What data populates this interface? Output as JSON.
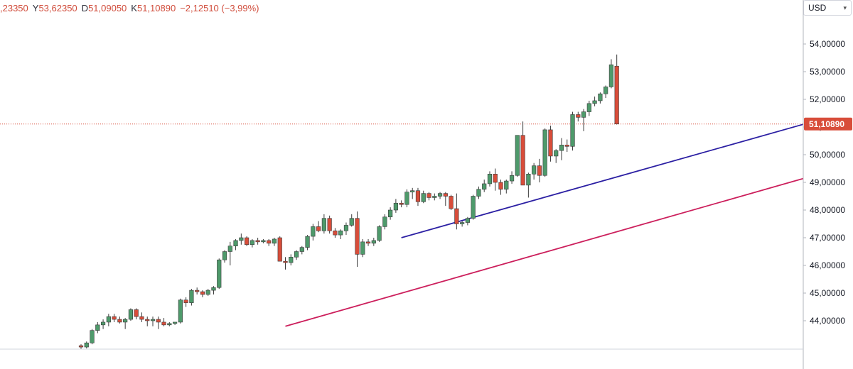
{
  "header": {
    "ohlc": [
      {
        "key": "",
        "value": ",23350"
      },
      {
        "key": "Y",
        "value": "53,62350"
      },
      {
        "key": "D",
        "value": "51,09050"
      },
      {
        "key": "K",
        "value": "51,10890"
      },
      {
        "key": "",
        "value": "−2,12510 (−3,99%)"
      }
    ],
    "currency": "USD"
  },
  "colors": {
    "up": "#4e9a6b",
    "down": "#d84d3a",
    "upper_channel": "#2b1fa3",
    "lower_channel": "#cc1f5c",
    "last_price_line": "#d84d3a"
  },
  "chart_data": {
    "type": "candlestick",
    "y_axis": {
      "ticks": [
        "54,00000",
        "53,00000",
        "52,00000",
        "51,00000",
        "50,00000",
        "49,00000",
        "48,00000",
        "47,00000",
        "46,00000",
        "45,00000",
        "44,00000"
      ],
      "tick_values": [
        54,
        53,
        52,
        51,
        50,
        49,
        48,
        47,
        46,
        45,
        44
      ],
      "range": [
        43.0,
        55.0
      ],
      "side": "right"
    },
    "last_price": {
      "label": "51,10890",
      "value": 51.1089
    },
    "trendlines": [
      {
        "id": "upper",
        "from": [
          58,
          47.0
        ],
        "to": [
          145,
          51.9
        ]
      },
      {
        "id": "lower",
        "from": [
          37,
          43.8
        ],
        "to": [
          145,
          49.95
        ]
      }
    ],
    "candles": [
      [
        43.1,
        43.15,
        42.9,
        43.05
      ],
      [
        43.05,
        43.25,
        43.0,
        43.2
      ],
      [
        43.2,
        43.7,
        43.15,
        43.65
      ],
      [
        43.65,
        43.95,
        43.55,
        43.85
      ],
      [
        43.85,
        44.05,
        43.7,
        43.95
      ],
      [
        43.95,
        44.25,
        43.8,
        44.15
      ],
      [
        44.15,
        44.25,
        43.95,
        44.05
      ],
      [
        44.05,
        44.15,
        43.9,
        43.95
      ],
      [
        43.95,
        44.1,
        43.7,
        44.05
      ],
      [
        44.05,
        44.45,
        44.0,
        44.4
      ],
      [
        44.4,
        44.45,
        44.05,
        44.15
      ],
      [
        44.15,
        44.3,
        43.95,
        44.05
      ],
      [
        44.05,
        44.15,
        43.8,
        44.0
      ],
      [
        44.0,
        44.15,
        43.8,
        44.05
      ],
      [
        44.05,
        44.15,
        43.7,
        43.95
      ],
      [
        43.95,
        44.1,
        43.8,
        43.85
      ],
      [
        43.85,
        43.95,
        43.8,
        43.9
      ],
      [
        43.9,
        43.95,
        43.85,
        43.95
      ],
      [
        43.95,
        44.8,
        43.9,
        44.75
      ],
      [
        44.75,
        44.85,
        44.5,
        44.65
      ],
      [
        44.65,
        45.15,
        44.55,
        45.1
      ],
      [
        45.1,
        45.2,
        44.95,
        45.05
      ],
      [
        45.05,
        45.1,
        44.85,
        44.95
      ],
      [
        44.95,
        45.15,
        44.9,
        45.1
      ],
      [
        45.1,
        45.25,
        44.95,
        45.2
      ],
      [
        45.2,
        46.25,
        45.15,
        46.2
      ],
      [
        46.2,
        46.55,
        46.1,
        46.5
      ],
      [
        46.5,
        46.85,
        46.0,
        46.7
      ],
      [
        46.7,
        46.95,
        46.55,
        46.9
      ],
      [
        46.9,
        47.15,
        46.75,
        47.0
      ],
      [
        47.0,
        47.05,
        46.7,
        46.75
      ],
      [
        46.75,
        46.95,
        46.65,
        46.9
      ],
      [
        46.9,
        47.0,
        46.75,
        46.85
      ],
      [
        46.85,
        46.95,
        46.8,
        46.9
      ],
      [
        46.9,
        46.95,
        46.7,
        46.8
      ],
      [
        46.8,
        47.0,
        46.7,
        46.95
      ],
      [
        47.0,
        47.05,
        46.15,
        46.15
      ],
      [
        46.15,
        46.3,
        45.85,
        46.1
      ],
      [
        46.1,
        46.4,
        46.0,
        46.3
      ],
      [
        46.3,
        46.55,
        46.2,
        46.5
      ],
      [
        46.5,
        46.7,
        46.4,
        46.65
      ],
      [
        46.65,
        47.1,
        46.55,
        47.05
      ],
      [
        47.05,
        47.5,
        46.9,
        47.4
      ],
      [
        47.4,
        47.6,
        47.2,
        47.25
      ],
      [
        47.25,
        47.85,
        47.15,
        47.7
      ],
      [
        47.7,
        47.8,
        47.15,
        47.25
      ],
      [
        47.25,
        47.35,
        47.0,
        47.1
      ],
      [
        47.1,
        47.3,
        46.95,
        47.25
      ],
      [
        47.25,
        47.55,
        47.1,
        47.45
      ],
      [
        47.45,
        47.85,
        47.4,
        47.7
      ],
      [
        47.7,
        47.95,
        45.95,
        46.4
      ],
      [
        46.4,
        46.95,
        46.3,
        46.85
      ],
      [
        46.85,
        46.95,
        46.7,
        46.8
      ],
      [
        46.8,
        47.0,
        46.7,
        46.9
      ],
      [
        46.9,
        47.45,
        46.85,
        47.4
      ],
      [
        47.4,
        47.85,
        47.3,
        47.75
      ],
      [
        47.75,
        48.1,
        47.65,
        48.0
      ],
      [
        48.0,
        48.4,
        47.9,
        48.25
      ],
      [
        48.25,
        48.35,
        48.1,
        48.2
      ],
      [
        48.2,
        48.75,
        48.1,
        48.65
      ],
      [
        48.65,
        48.8,
        48.4,
        48.7
      ],
      [
        48.7,
        48.8,
        48.15,
        48.3
      ],
      [
        48.3,
        48.7,
        48.25,
        48.6
      ],
      [
        48.6,
        48.65,
        48.35,
        48.45
      ],
      [
        48.45,
        48.6,
        48.35,
        48.5
      ],
      [
        48.5,
        48.65,
        48.4,
        48.6
      ],
      [
        48.6,
        48.65,
        48.15,
        48.5
      ],
      [
        48.5,
        48.55,
        48.0,
        48.05
      ],
      [
        48.05,
        48.6,
        47.3,
        47.5
      ],
      [
        47.5,
        47.6,
        47.4,
        47.55
      ],
      [
        47.55,
        47.75,
        47.45,
        47.7
      ],
      [
        47.7,
        48.55,
        47.65,
        48.5
      ],
      [
        48.5,
        48.85,
        48.4,
        48.75
      ],
      [
        48.75,
        49.1,
        48.65,
        48.95
      ],
      [
        48.95,
        49.4,
        48.85,
        49.3
      ],
      [
        49.3,
        49.5,
        48.7,
        49.0
      ],
      [
        49.0,
        49.1,
        48.55,
        48.75
      ],
      [
        48.75,
        49.1,
        48.6,
        49.05
      ],
      [
        49.05,
        49.4,
        48.95,
        49.25
      ],
      [
        49.25,
        50.7,
        49.2,
        50.7
      ],
      [
        50.7,
        51.2,
        48.9,
        48.9
      ],
      [
        48.9,
        49.35,
        48.45,
        49.3
      ],
      [
        49.3,
        49.7,
        49.1,
        49.6
      ],
      [
        49.6,
        49.85,
        49.0,
        49.25
      ],
      [
        49.25,
        50.95,
        49.2,
        50.9
      ],
      [
        50.9,
        51.05,
        49.75,
        49.95
      ],
      [
        49.95,
        50.2,
        49.7,
        50.15
      ],
      [
        50.15,
        50.6,
        49.8,
        50.35
      ],
      [
        50.35,
        50.55,
        50.1,
        50.3
      ],
      [
        50.3,
        51.55,
        50.15,
        51.45
      ],
      [
        51.45,
        51.55,
        51.2,
        51.35
      ],
      [
        51.35,
        51.65,
        50.85,
        51.55
      ],
      [
        51.55,
        51.95,
        51.4,
        51.85
      ],
      [
        51.85,
        52.1,
        51.75,
        51.95
      ],
      [
        51.95,
        52.25,
        51.85,
        52.2
      ],
      [
        52.2,
        52.5,
        52.05,
        52.45
      ],
      [
        52.45,
        53.45,
        52.4,
        53.25
      ],
      [
        53.2,
        53.62,
        51.09,
        51.11
      ]
    ]
  }
}
